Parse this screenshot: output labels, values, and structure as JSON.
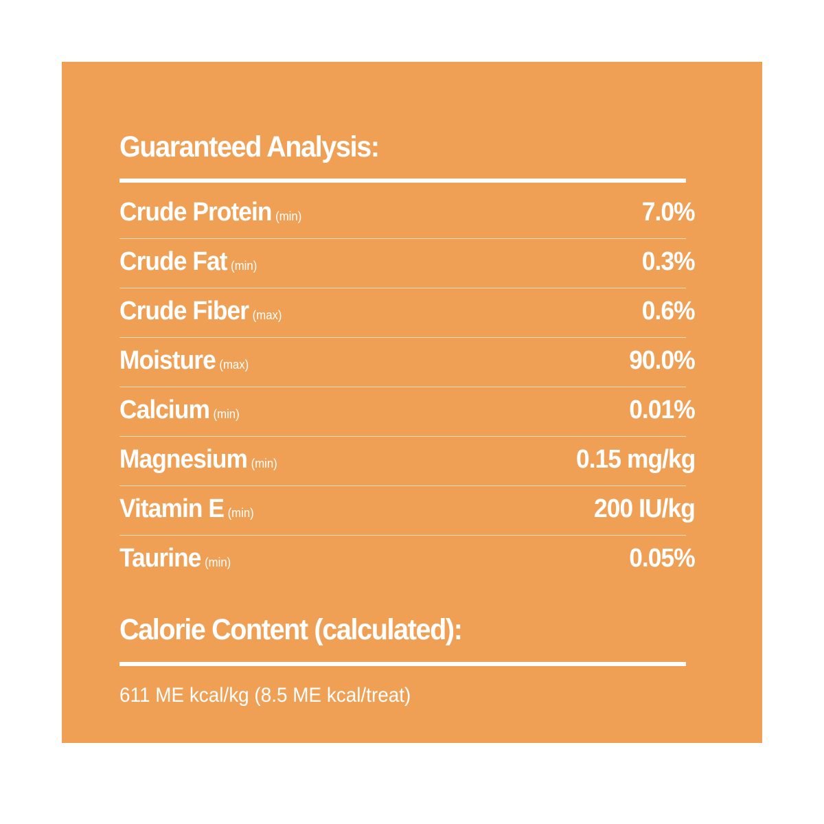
{
  "guaranteed_analysis": {
    "heading": "Guaranteed Analysis:",
    "rows": [
      {
        "name": "Crude Protein",
        "qualifier": "(min)",
        "value": "7.0%"
      },
      {
        "name": "Crude Fat",
        "qualifier": "(min)",
        "value": "0.3%"
      },
      {
        "name": "Crude Fiber",
        "qualifier": "(max)",
        "value": "0.6%"
      },
      {
        "name": "Moisture",
        "qualifier": "(max)",
        "value": "90.0%"
      },
      {
        "name": "Calcium",
        "qualifier": "(min)",
        "value": "0.01%"
      },
      {
        "name": "Magnesium",
        "qualifier": "(min)",
        "value": "0.15 mg/kg"
      },
      {
        "name": "Vitamin E",
        "qualifier": "(min)",
        "value": "200 IU/kg"
      },
      {
        "name": "Taurine",
        "qualifier": "(min)",
        "value": "0.05%"
      }
    ]
  },
  "calorie_content": {
    "heading": "Calorie Content (calculated):",
    "text": "611 ME kcal/kg (8.5 ME kcal/treat)"
  },
  "colors": {
    "panel_background": "#f0a055",
    "text": "#ffffff",
    "page_background": "#ffffff"
  }
}
